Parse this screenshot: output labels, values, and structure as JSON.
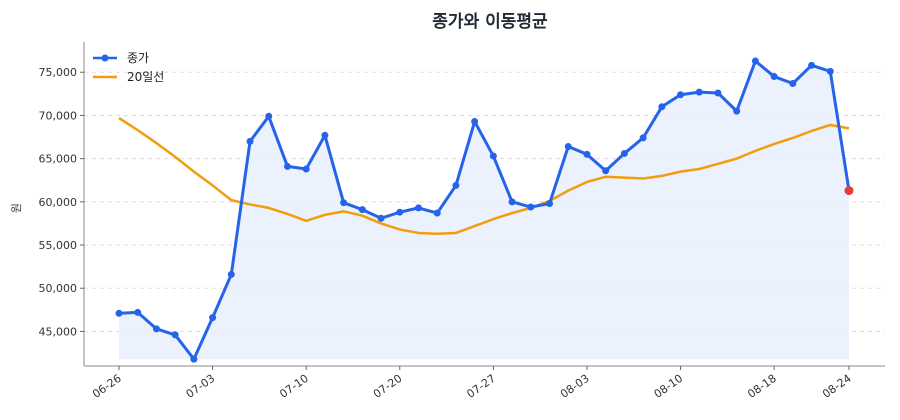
{
  "chart_data": {
    "type": "line",
    "title": "종가와 이동평균",
    "xlabel": "",
    "ylabel": "원",
    "ylim": [
      41000,
      78500
    ],
    "yticks": [
      45000,
      50000,
      55000,
      60000,
      65000,
      70000,
      75000
    ],
    "ytick_labels": [
      "45,000",
      "50,000",
      "55,000",
      "60,000",
      "65,000",
      "70,000",
      "75,000"
    ],
    "xtick_labels": [
      "06-26",
      "07-03",
      "07-10",
      "07-20",
      "07-27",
      "08-03",
      "08-10",
      "08-18",
      "08-24"
    ],
    "xtick_index": [
      0,
      5,
      10,
      15,
      20,
      25,
      30,
      35,
      39
    ],
    "grid": true,
    "legend": "top-left",
    "colors": {
      "close": "#2563eb",
      "ma20": "#f29d0c",
      "fill": "#e8effd",
      "last_point": "#e53e3e",
      "grid": "#dddddd"
    },
    "series": [
      {
        "name": "종가",
        "values": [
          47100,
          47200,
          45300,
          44600,
          41800,
          46600,
          51600,
          67000,
          69900,
          64100,
          63800,
          67700,
          59900,
          59100,
          58100,
          58800,
          59300,
          58700,
          61900,
          69300,
          65300,
          60000,
          59400,
          59800,
          66400,
          65500,
          63600,
          65600,
          67400,
          71000,
          72400,
          72700,
          72600,
          70500,
          76300,
          74500,
          73700,
          75800,
          75100,
          61300
        ]
      },
      {
        "name": "20일선",
        "values": [
          69700,
          68300,
          66800,
          65200,
          63500,
          61900,
          60200,
          59700,
          59300,
          58600,
          57800,
          58500,
          58900,
          58400,
          57500,
          56800,
          56400,
          56300,
          56400,
          57200,
          58000,
          58700,
          59300,
          60100,
          61300,
          62300,
          62900,
          62800,
          62700,
          63000,
          63500,
          63800,
          64400,
          65000,
          65900,
          66700,
          67400,
          68200,
          68900,
          68500
        ]
      }
    ]
  }
}
